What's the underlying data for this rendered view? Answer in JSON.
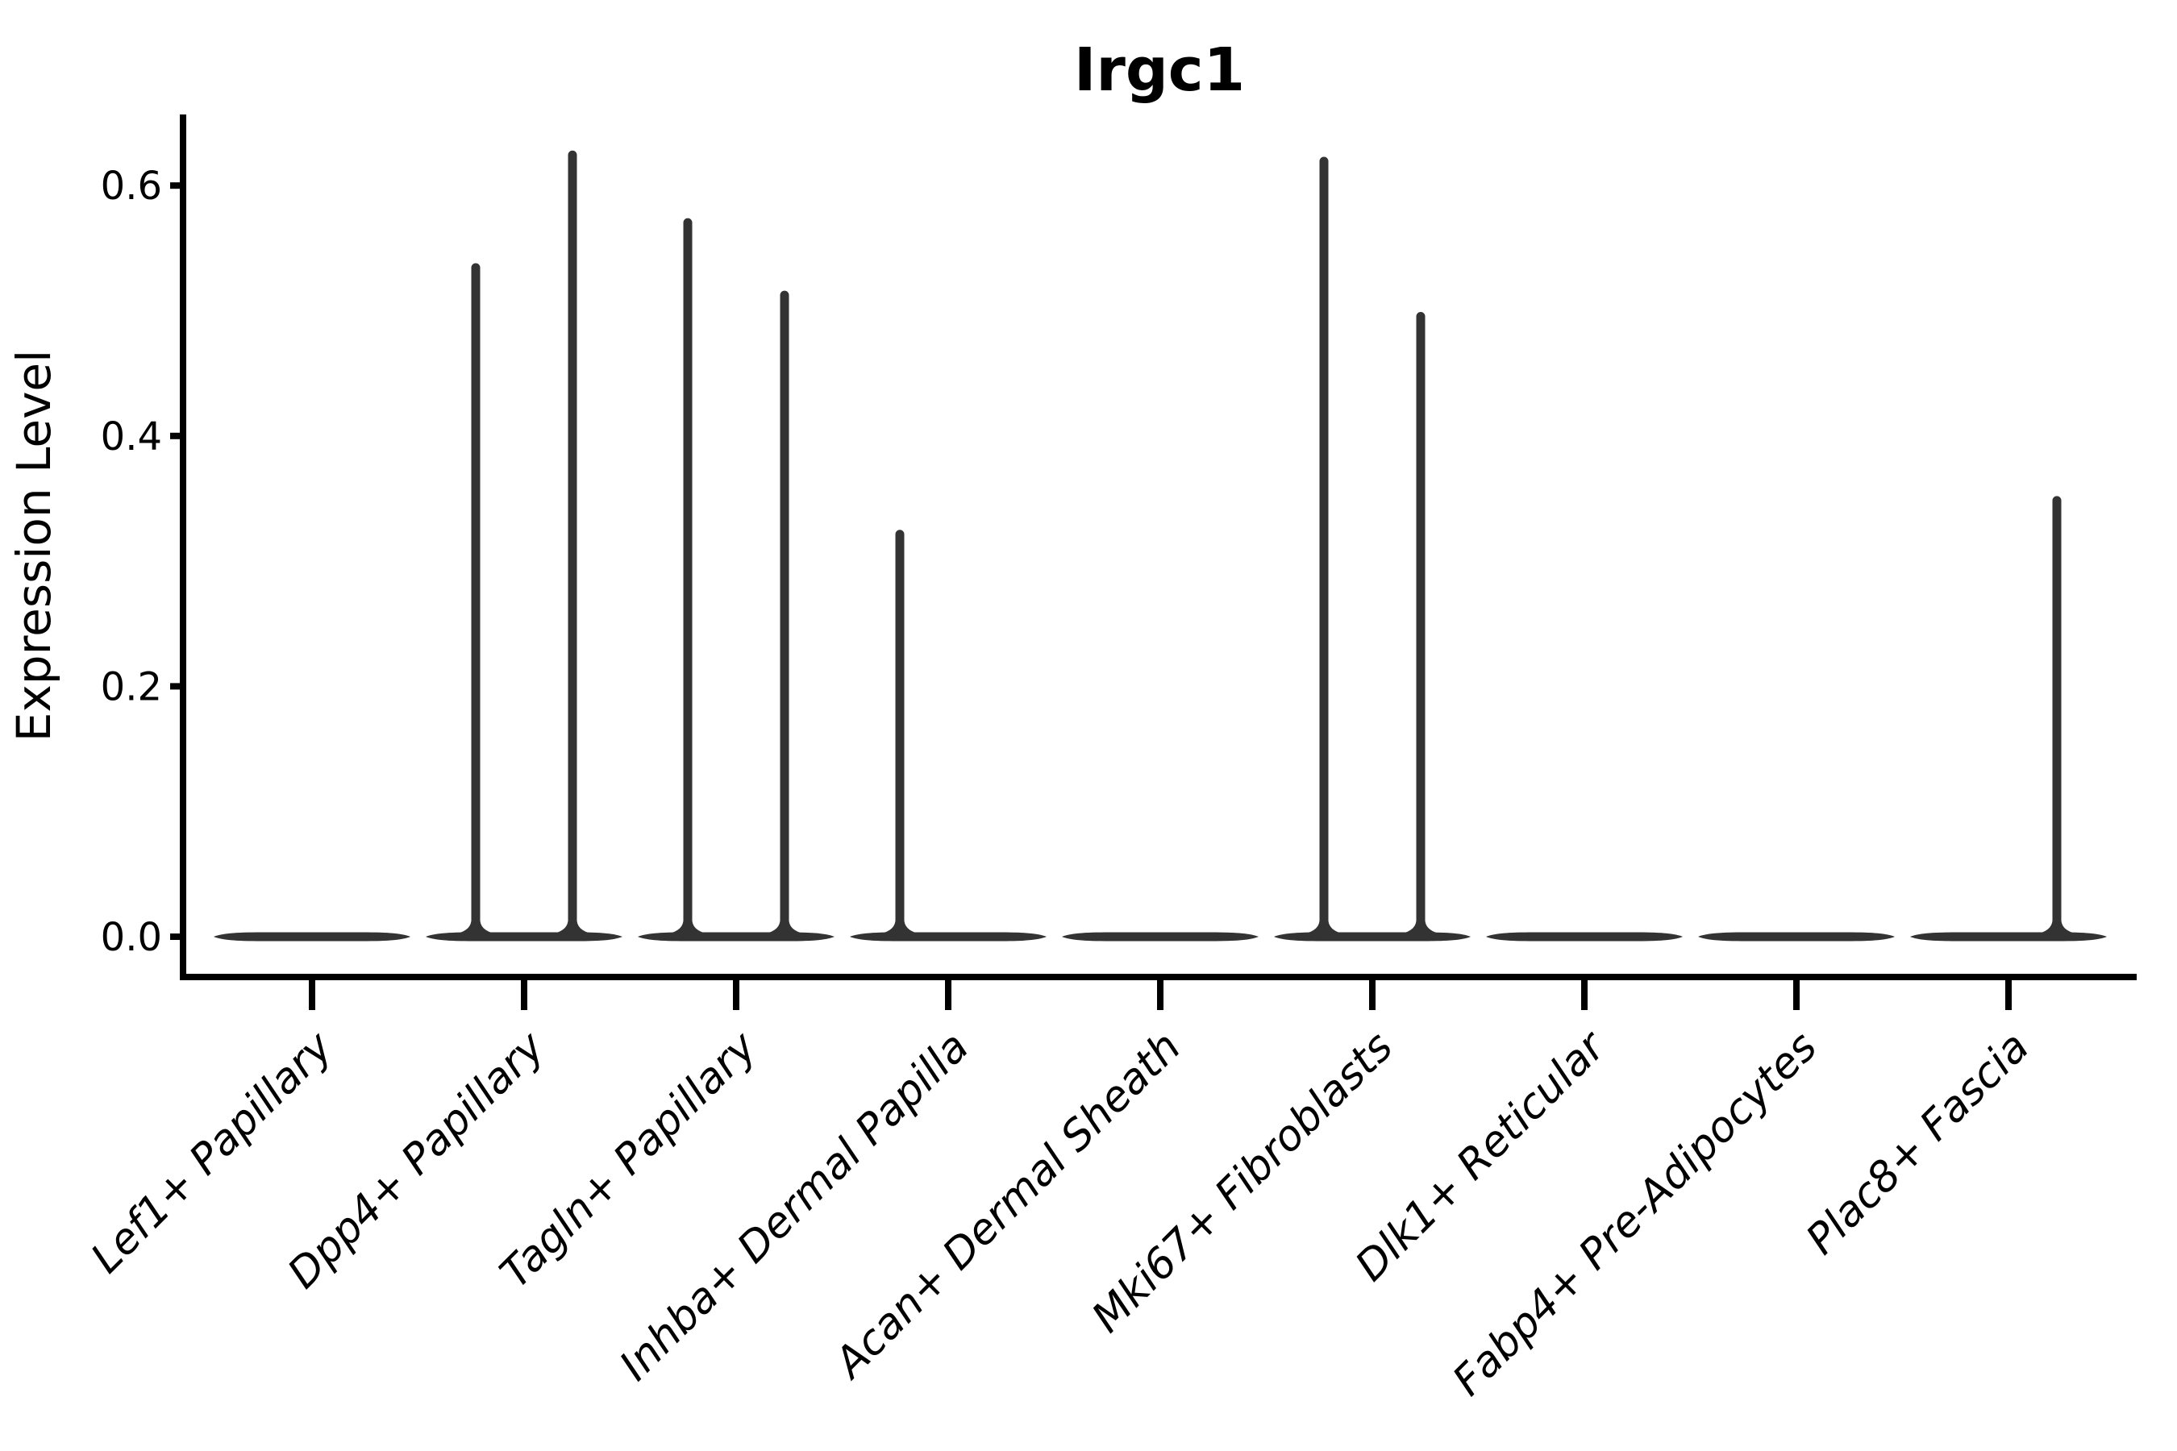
{
  "chart_data": {
    "type": "violin",
    "title": "Irgc1",
    "xlabel": "",
    "ylabel": "Expression Level",
    "yticks": [
      0.0,
      0.2,
      0.4,
      0.6
    ],
    "ylim": [
      -0.03,
      0.657
    ],
    "grid": false,
    "legend": false,
    "categories": [
      "Lef1+ Papillary",
      "Dpp4+ Papillary",
      "Tagln+ Papillary",
      "Inhba+ Dermal Papilla",
      "Acan+ Dermal Sheath",
      "Mki67+ Fibroblasts",
      "Dlk1+ Reticular",
      "Fabp4+ Pre-Adipocytes",
      "Plac8+ Fascia"
    ],
    "violins": [
      {
        "category": "Lef1+ Papillary",
        "baseline_value": 0.0,
        "spikes": []
      },
      {
        "category": "Dpp4+ Papillary",
        "baseline_value": 0.0,
        "spikes": [
          {
            "side": "left",
            "max_value": 0.538
          },
          {
            "side": "right",
            "max_value": 0.628
          }
        ]
      },
      {
        "category": "Tagln+ Papillary",
        "baseline_value": 0.0,
        "spikes": [
          {
            "side": "left",
            "max_value": 0.574
          },
          {
            "side": "right",
            "max_value": 0.516
          }
        ]
      },
      {
        "category": "Inhba+ Dermal Papilla",
        "baseline_value": 0.0,
        "spikes": [
          {
            "side": "left",
            "max_value": 0.325
          }
        ]
      },
      {
        "category": "Acan+ Dermal Sheath",
        "baseline_value": 0.0,
        "spikes": []
      },
      {
        "category": "Mki67+ Fibroblasts",
        "baseline_value": 0.0,
        "spikes": [
          {
            "side": "left",
            "max_value": 0.623
          },
          {
            "side": "right",
            "max_value": 0.499
          }
        ]
      },
      {
        "category": "Dlk1+ Reticular",
        "baseline_value": 0.0,
        "spikes": []
      },
      {
        "category": "Fabp4+ Pre-Adipocytes",
        "baseline_value": 0.0,
        "spikes": []
      },
      {
        "category": "Plac8+ Fascia",
        "baseline_value": 0.0,
        "spikes": [
          {
            "side": "right",
            "max_value": 0.352
          }
        ]
      }
    ],
    "colors": {
      "violin": "#333333",
      "axis": "#000000",
      "text": "#000000",
      "background": "#ffffff"
    }
  }
}
